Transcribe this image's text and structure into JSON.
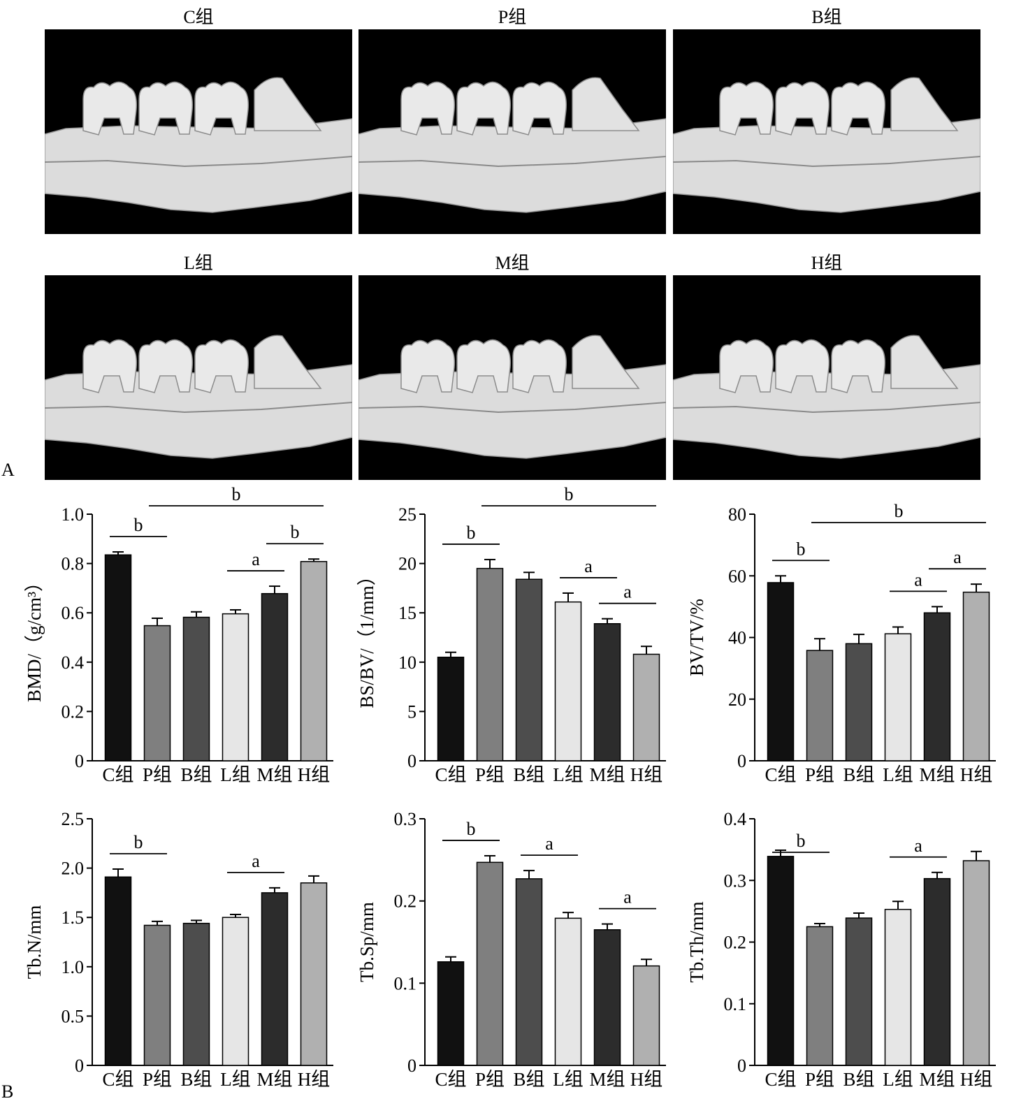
{
  "panel_labels": {
    "a": "A",
    "b": "B"
  },
  "images": [
    {
      "title": "C组"
    },
    {
      "title": "P组"
    },
    {
      "title": "B组"
    },
    {
      "title": "L组"
    },
    {
      "title": "M组"
    },
    {
      "title": "H组"
    }
  ],
  "bar_colors": [
    "#111111",
    "#7f7f7f",
    "#4d4d4d",
    "#e6e6e6",
    "#2c2c2c",
    "#b0b0b0"
  ],
  "chart_data": [
    {
      "type": "bar",
      "title": "",
      "ylabel": "BMD/（g/cm³）",
      "categories": [
        "C组",
        "P组",
        "B组",
        "L组",
        "M组",
        "H组"
      ],
      "values": [
        0.835,
        0.548,
        0.582,
        0.596,
        0.678,
        0.808
      ],
      "errors": [
        0.012,
        0.03,
        0.022,
        0.016,
        0.03,
        0.01
      ],
      "ylim": [
        0,
        1.0
      ],
      "yticks": [
        "0",
        "0.2",
        "0.4",
        "0.6",
        "0.8",
        "1.0"
      ],
      "annotations": [
        {
          "text": "b",
          "from": 0,
          "to": 1
        },
        {
          "text": "b",
          "from": 1,
          "to": 5
        },
        {
          "text": "a",
          "from": 3,
          "to": 4
        },
        {
          "text": "b",
          "from": 4,
          "to": 5
        }
      ]
    },
    {
      "type": "bar",
      "title": "",
      "ylabel": "BS/BV/（1/mm）",
      "categories": [
        "C组",
        "P组",
        "B组",
        "L组",
        "M组",
        "H组"
      ],
      "values": [
        10.5,
        19.5,
        18.4,
        16.1,
        13.9,
        10.8
      ],
      "errors": [
        0.5,
        0.9,
        0.7,
        0.9,
        0.5,
        0.8
      ],
      "ylim": [
        0,
        25
      ],
      "yticks": [
        "0",
        "5",
        "10",
        "15",
        "20",
        "25"
      ],
      "annotations": [
        {
          "text": "b",
          "from": 0,
          "to": 1
        },
        {
          "text": "b",
          "from": 1,
          "to": 5
        },
        {
          "text": "a",
          "from": 3,
          "to": 4
        },
        {
          "text": "a",
          "from": 4,
          "to": 5
        }
      ]
    },
    {
      "type": "bar",
      "title": "",
      "ylabel": "BV/TV/%",
      "categories": [
        "C组",
        "P组",
        "B组",
        "L组",
        "M组",
        "H组"
      ],
      "values": [
        57.8,
        35.8,
        38.0,
        41.2,
        48.0,
        54.7
      ],
      "errors": [
        2.2,
        3.8,
        3.0,
        2.2,
        2.0,
        2.6
      ],
      "ylim": [
        0,
        80
      ],
      "yticks": [
        "0",
        "20",
        "40",
        "60",
        "80"
      ],
      "annotations": [
        {
          "text": "b",
          "from": 0,
          "to": 1
        },
        {
          "text": "b",
          "from": 1,
          "to": 5
        },
        {
          "text": "a",
          "from": 3,
          "to": 4
        },
        {
          "text": "a",
          "from": 4,
          "to": 5
        }
      ]
    },
    {
      "type": "bar",
      "title": "",
      "ylabel": "Tb.N/mm",
      "categories": [
        "C组",
        "P组",
        "B组",
        "L组",
        "M组",
        "H组"
      ],
      "values": [
        1.91,
        1.42,
        1.44,
        1.5,
        1.75,
        1.85
      ],
      "errors": [
        0.08,
        0.04,
        0.03,
        0.03,
        0.05,
        0.07
      ],
      "ylim": [
        0,
        2.5
      ],
      "yticks": [
        "0",
        "0.5",
        "1.0",
        "1.5",
        "2.0",
        "2.5"
      ],
      "annotations": [
        {
          "text": "b",
          "from": 0,
          "to": 1
        },
        {
          "text": "a",
          "from": 3,
          "to": 4
        }
      ]
    },
    {
      "type": "bar",
      "title": "",
      "ylabel": "Tb.Sp/mm",
      "categories": [
        "C组",
        "P组",
        "B组",
        "L组",
        "M组",
        "H组"
      ],
      "values": [
        0.126,
        0.247,
        0.227,
        0.179,
        0.165,
        0.121
      ],
      "errors": [
        0.006,
        0.008,
        0.01,
        0.007,
        0.007,
        0.008
      ],
      "ylim": [
        0,
        0.3
      ],
      "yticks": [
        "0",
        "0.1",
        "0.2",
        "0.3"
      ],
      "annotations": [
        {
          "text": "b",
          "from": 0,
          "to": 1
        },
        {
          "text": "a",
          "from": 2,
          "to": 3
        },
        {
          "text": "a",
          "from": 4,
          "to": 5
        }
      ]
    },
    {
      "type": "bar",
      "title": "",
      "ylabel": "Tb.Th/mm",
      "categories": [
        "C组",
        "P组",
        "B组",
        "L组",
        "M组",
        "H组"
      ],
      "values": [
        0.339,
        0.225,
        0.239,
        0.253,
        0.303,
        0.332
      ],
      "errors": [
        0.01,
        0.005,
        0.008,
        0.013,
        0.01,
        0.015
      ],
      "ylim": [
        0,
        0.4
      ],
      "yticks": [
        "0",
        "0.1",
        "0.2",
        "0.3",
        "0.4"
      ],
      "annotations": [
        {
          "text": "b",
          "from": 0,
          "to": 1
        },
        {
          "text": "a",
          "from": 3,
          "to": 4
        }
      ]
    }
  ]
}
